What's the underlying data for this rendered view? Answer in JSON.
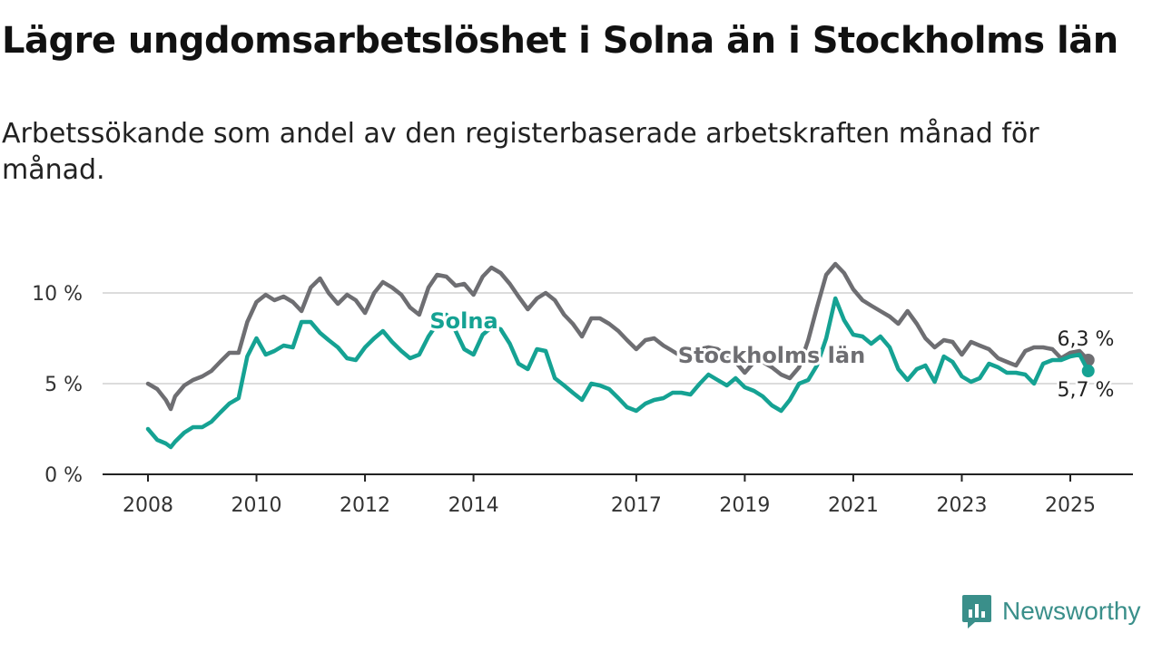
{
  "header": {
    "title": "Lägre ungdomsarbetslöshet i Solna än i Stockholms län",
    "subtitle": "Arbetssökande som andel av den registerbaserade arbetskraften månad för månad."
  },
  "brand": {
    "name": "Newsworthy",
    "icon": "newsworthy-logo-icon",
    "color": "#3a8f8a"
  },
  "chart_data": {
    "type": "line",
    "x_range": [
      2008.0,
      2025.6
    ],
    "ylim": [
      0,
      12
    ],
    "y_ticks": [
      {
        "value": 0,
        "label": "0 %"
      },
      {
        "value": 5,
        "label": "5 %"
      },
      {
        "value": 10,
        "label": "10 %"
      }
    ],
    "x_ticks": [
      {
        "value": 2008,
        "label": "2008"
      },
      {
        "value": 2010,
        "label": "2010"
      },
      {
        "value": 2012,
        "label": "2012"
      },
      {
        "value": 2014,
        "label": "2014"
      },
      {
        "value": 2017,
        "label": "2017"
      },
      {
        "value": 2019,
        "label": "2019"
      },
      {
        "value": 2021,
        "label": "2021"
      },
      {
        "value": 2023,
        "label": "2023"
      },
      {
        "value": 2025,
        "label": "2025"
      }
    ],
    "grid": true,
    "series": [
      {
        "name": "Stockholms län",
        "color": "#6e6e72",
        "end_label": "6,3 %",
        "points": [
          [
            2008.0,
            5.0
          ],
          [
            2008.17,
            4.7
          ],
          [
            2008.33,
            4.1
          ],
          [
            2008.42,
            3.6
          ],
          [
            2008.5,
            4.3
          ],
          [
            2008.67,
            4.9
          ],
          [
            2008.83,
            5.2
          ],
          [
            2009.0,
            5.4
          ],
          [
            2009.17,
            5.7
          ],
          [
            2009.33,
            6.2
          ],
          [
            2009.5,
            6.7
          ],
          [
            2009.67,
            6.7
          ],
          [
            2009.83,
            8.4
          ],
          [
            2010.0,
            9.5
          ],
          [
            2010.17,
            9.9
          ],
          [
            2010.33,
            9.6
          ],
          [
            2010.5,
            9.8
          ],
          [
            2010.67,
            9.5
          ],
          [
            2010.83,
            9.0
          ],
          [
            2011.0,
            10.3
          ],
          [
            2011.17,
            10.8
          ],
          [
            2011.33,
            10.0
          ],
          [
            2011.5,
            9.4
          ],
          [
            2011.67,
            9.9
          ],
          [
            2011.83,
            9.6
          ],
          [
            2012.0,
            8.9
          ],
          [
            2012.17,
            10.0
          ],
          [
            2012.33,
            10.6
          ],
          [
            2012.5,
            10.3
          ],
          [
            2012.67,
            9.9
          ],
          [
            2012.83,
            9.2
          ],
          [
            2013.0,
            8.8
          ],
          [
            2013.17,
            10.3
          ],
          [
            2013.33,
            11.0
          ],
          [
            2013.5,
            10.9
          ],
          [
            2013.67,
            10.4
          ],
          [
            2013.83,
            10.5
          ],
          [
            2014.0,
            9.9
          ],
          [
            2014.17,
            10.9
          ],
          [
            2014.33,
            11.4
          ],
          [
            2014.5,
            11.1
          ],
          [
            2014.67,
            10.5
          ],
          [
            2014.83,
            9.8
          ],
          [
            2015.0,
            9.1
          ],
          [
            2015.17,
            9.7
          ],
          [
            2015.33,
            10.0
          ],
          [
            2015.5,
            9.6
          ],
          [
            2015.67,
            8.8
          ],
          [
            2015.83,
            8.3
          ],
          [
            2016.0,
            7.6
          ],
          [
            2016.17,
            8.6
          ],
          [
            2016.33,
            8.6
          ],
          [
            2016.5,
            8.3
          ],
          [
            2016.67,
            7.9
          ],
          [
            2016.83,
            7.4
          ],
          [
            2017.0,
            6.9
          ],
          [
            2017.17,
            7.4
          ],
          [
            2017.33,
            7.5
          ],
          [
            2017.5,
            7.1
          ],
          [
            2017.67,
            6.8
          ],
          [
            2017.83,
            6.5
          ],
          [
            2018.0,
            6.2
          ],
          [
            2018.17,
            6.9
          ],
          [
            2018.33,
            7.0
          ],
          [
            2018.5,
            6.9
          ],
          [
            2018.67,
            6.5
          ],
          [
            2018.83,
            6.2
          ],
          [
            2019.0,
            5.6
          ],
          [
            2019.17,
            6.2
          ],
          [
            2019.33,
            6.2
          ],
          [
            2019.5,
            5.9
          ],
          [
            2019.67,
            5.5
          ],
          [
            2019.83,
            5.3
          ],
          [
            2020.0,
            5.9
          ],
          [
            2020.17,
            7.4
          ],
          [
            2020.33,
            9.2
          ],
          [
            2020.5,
            11.0
          ],
          [
            2020.67,
            11.6
          ],
          [
            2020.83,
            11.1
          ],
          [
            2021.0,
            10.2
          ],
          [
            2021.17,
            9.6
          ],
          [
            2021.33,
            9.3
          ],
          [
            2021.5,
            9.0
          ],
          [
            2021.67,
            8.7
          ],
          [
            2021.83,
            8.3
          ],
          [
            2022.0,
            9.0
          ],
          [
            2022.17,
            8.3
          ],
          [
            2022.33,
            7.5
          ],
          [
            2022.5,
            7.0
          ],
          [
            2022.67,
            7.4
          ],
          [
            2022.83,
            7.3
          ],
          [
            2023.0,
            6.6
          ],
          [
            2023.17,
            7.3
          ],
          [
            2023.33,
            7.1
          ],
          [
            2023.5,
            6.9
          ],
          [
            2023.67,
            6.4
          ],
          [
            2023.83,
            6.2
          ],
          [
            2024.0,
            6.0
          ],
          [
            2024.17,
            6.8
          ],
          [
            2024.33,
            7.0
          ],
          [
            2024.5,
            7.0
          ],
          [
            2024.67,
            6.9
          ],
          [
            2024.83,
            6.4
          ],
          [
            2025.0,
            6.7
          ],
          [
            2025.17,
            6.8
          ],
          [
            2025.33,
            6.3
          ]
        ]
      },
      {
        "name": "Solna",
        "color": "#15a293",
        "end_label": "5,7 %",
        "points": [
          [
            2008.0,
            2.5
          ],
          [
            2008.17,
            1.9
          ],
          [
            2008.33,
            1.7
          ],
          [
            2008.42,
            1.5
          ],
          [
            2008.5,
            1.8
          ],
          [
            2008.67,
            2.3
          ],
          [
            2008.83,
            2.6
          ],
          [
            2009.0,
            2.6
          ],
          [
            2009.17,
            2.9
          ],
          [
            2009.33,
            3.4
          ],
          [
            2009.5,
            3.9
          ],
          [
            2009.67,
            4.2
          ],
          [
            2009.83,
            6.5
          ],
          [
            2010.0,
            7.5
          ],
          [
            2010.17,
            6.6
          ],
          [
            2010.33,
            6.8
          ],
          [
            2010.5,
            7.1
          ],
          [
            2010.67,
            7.0
          ],
          [
            2010.83,
            8.4
          ],
          [
            2011.0,
            8.4
          ],
          [
            2011.17,
            7.8
          ],
          [
            2011.33,
            7.4
          ],
          [
            2011.5,
            7.0
          ],
          [
            2011.67,
            6.4
          ],
          [
            2011.83,
            6.3
          ],
          [
            2012.0,
            7.0
          ],
          [
            2012.17,
            7.5
          ],
          [
            2012.33,
            7.9
          ],
          [
            2012.5,
            7.3
          ],
          [
            2012.67,
            6.8
          ],
          [
            2012.83,
            6.4
          ],
          [
            2013.0,
            6.6
          ],
          [
            2013.17,
            7.6
          ],
          [
            2013.33,
            8.3
          ],
          [
            2013.5,
            8.8
          ],
          [
            2013.67,
            7.9
          ],
          [
            2013.83,
            6.9
          ],
          [
            2014.0,
            6.6
          ],
          [
            2014.17,
            7.7
          ],
          [
            2014.33,
            8.1
          ],
          [
            2014.5,
            8.0
          ],
          [
            2014.67,
            7.2
          ],
          [
            2014.83,
            6.1
          ],
          [
            2015.0,
            5.8
          ],
          [
            2015.17,
            6.9
          ],
          [
            2015.33,
            6.8
          ],
          [
            2015.5,
            5.3
          ],
          [
            2015.67,
            4.9
          ],
          [
            2015.83,
            4.5
          ],
          [
            2016.0,
            4.1
          ],
          [
            2016.17,
            5.0
          ],
          [
            2016.33,
            4.9
          ],
          [
            2016.5,
            4.7
          ],
          [
            2016.67,
            4.2
          ],
          [
            2016.83,
            3.7
          ],
          [
            2017.0,
            3.5
          ],
          [
            2017.17,
            3.9
          ],
          [
            2017.33,
            4.1
          ],
          [
            2017.5,
            4.2
          ],
          [
            2017.67,
            4.5
          ],
          [
            2017.83,
            4.5
          ],
          [
            2018.0,
            4.4
          ],
          [
            2018.17,
            5.0
          ],
          [
            2018.33,
            5.5
          ],
          [
            2018.5,
            5.2
          ],
          [
            2018.67,
            4.9
          ],
          [
            2018.83,
            5.3
          ],
          [
            2019.0,
            4.8
          ],
          [
            2019.17,
            4.6
          ],
          [
            2019.33,
            4.3
          ],
          [
            2019.5,
            3.8
          ],
          [
            2019.67,
            3.5
          ],
          [
            2019.83,
            4.1
          ],
          [
            2020.0,
            5.0
          ],
          [
            2020.17,
            5.2
          ],
          [
            2020.33,
            6.0
          ],
          [
            2020.5,
            7.5
          ],
          [
            2020.67,
            9.7
          ],
          [
            2020.83,
            8.5
          ],
          [
            2021.0,
            7.7
          ],
          [
            2021.17,
            7.6
          ],
          [
            2021.33,
            7.2
          ],
          [
            2021.5,
            7.6
          ],
          [
            2021.67,
            7.0
          ],
          [
            2021.83,
            5.8
          ],
          [
            2022.0,
            5.2
          ],
          [
            2022.17,
            5.8
          ],
          [
            2022.33,
            6.0
          ],
          [
            2022.5,
            5.1
          ],
          [
            2022.67,
            6.5
          ],
          [
            2022.83,
            6.2
          ],
          [
            2023.0,
            5.4
          ],
          [
            2023.17,
            5.1
          ],
          [
            2023.33,
            5.3
          ],
          [
            2023.5,
            6.1
          ],
          [
            2023.67,
            5.9
          ],
          [
            2023.83,
            5.6
          ],
          [
            2024.0,
            5.6
          ],
          [
            2024.17,
            5.5
          ],
          [
            2024.33,
            5.0
          ],
          [
            2024.5,
            6.1
          ],
          [
            2024.67,
            6.3
          ],
          [
            2024.83,
            6.3
          ],
          [
            2025.0,
            6.5
          ],
          [
            2025.17,
            6.6
          ],
          [
            2025.33,
            5.7
          ]
        ]
      }
    ]
  }
}
